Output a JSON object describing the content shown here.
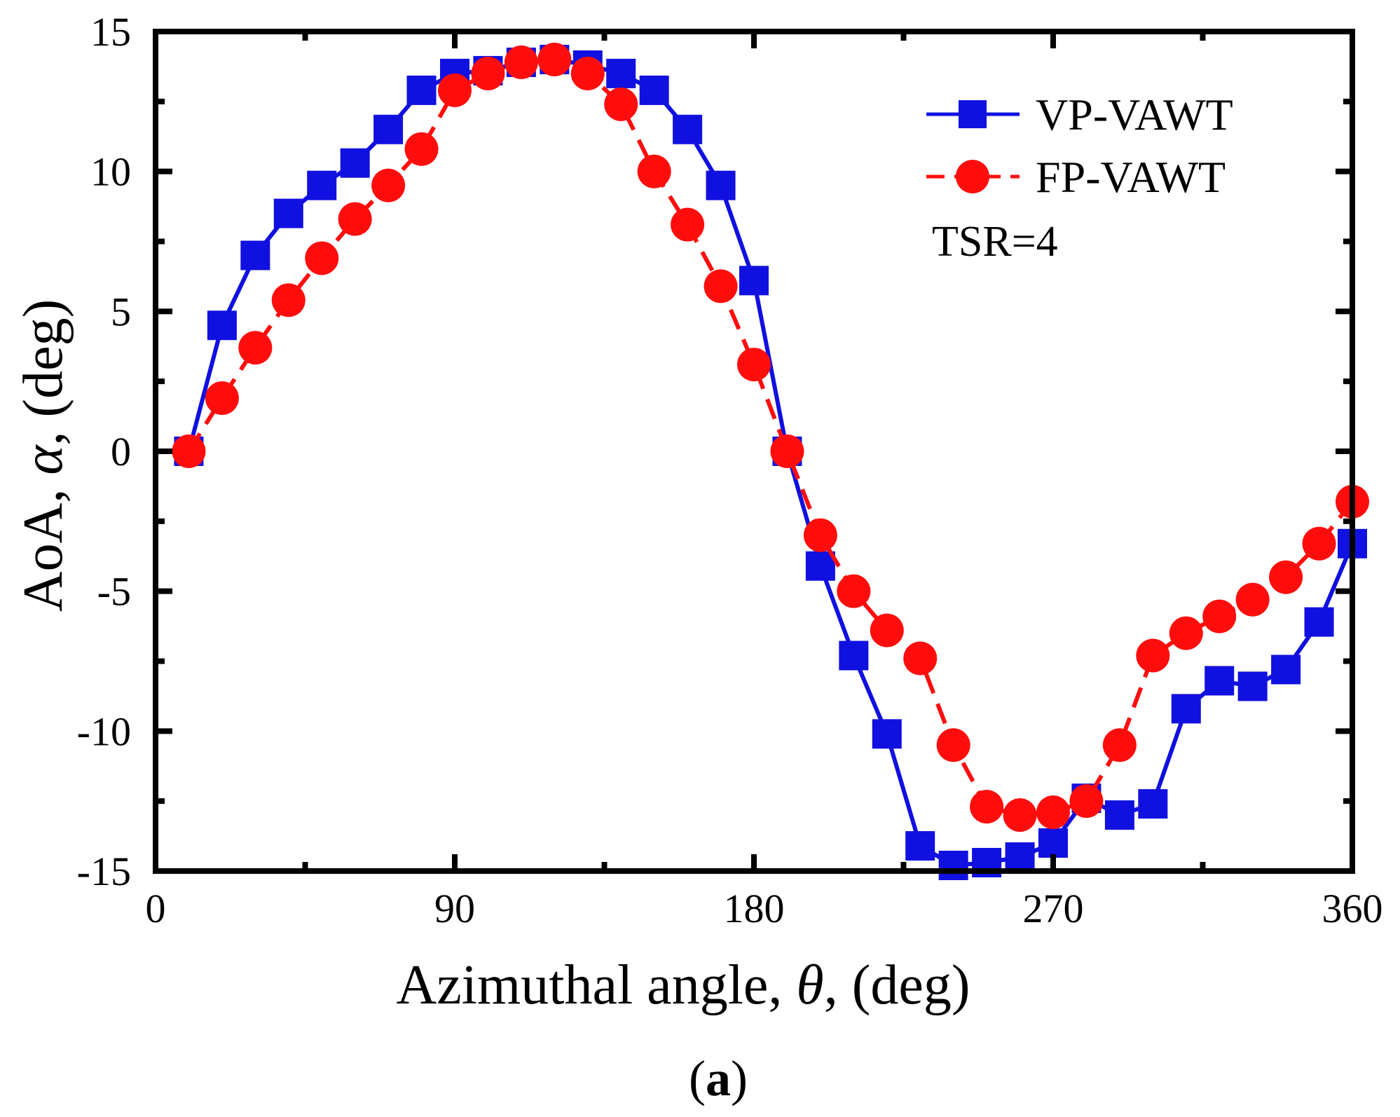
{
  "chart_data": {
    "type": "line",
    "title": "",
    "xlabel_main": "Azimuthal angle, ",
    "xlabel_symbol": "θ",
    "xlabel_unit": ", (deg)",
    "ylabel_main": "AoA, ",
    "ylabel_symbol": "α",
    "ylabel_unit": ", (deg)",
    "xlim": [
      0,
      360
    ],
    "ylim": [
      -15,
      15
    ],
    "xticks": [
      0,
      90,
      180,
      270,
      360
    ],
    "xtick_labels": [
      "0",
      "90",
      "180",
      "270",
      "360"
    ],
    "yticks": [
      -15,
      -10,
      -5,
      0,
      5,
      10,
      15
    ],
    "ytick_labels": [
      "-15",
      "-10",
      "-5",
      "0",
      "5",
      "10",
      "15"
    ],
    "grid": false,
    "legend_position": "top-right",
    "annotation": "TSR=4",
    "caption_open": "(",
    "caption_letter": "a",
    "caption_close": ")",
    "series": [
      {
        "name": "VP-VAWT",
        "color": "#1010e0",
        "marker": "square",
        "line_style": "solid",
        "x": [
          10,
          20,
          30,
          40,
          50,
          60,
          70,
          80,
          90,
          100,
          110,
          120,
          130,
          140,
          150,
          160,
          170,
          180,
          190,
          200,
          210,
          220,
          230,
          240,
          250,
          260,
          270,
          280,
          290,
          300,
          310,
          320,
          330,
          340,
          350,
          360
        ],
        "y": [
          0,
          4.5,
          7,
          8.5,
          9.5,
          10.3,
          11.5,
          12.9,
          13.5,
          13.6,
          13.9,
          14,
          13.8,
          13.5,
          12.9,
          11.5,
          9.5,
          6.1,
          0,
          -4.1,
          -7.3,
          -10.1,
          -14.1,
          -14.8,
          -14.7,
          -14.5,
          -14,
          -12.4,
          -13,
          -12.6,
          -9.2,
          -8.2,
          -8.4,
          -7.8,
          -6.1,
          -3.3
        ]
      },
      {
        "name": "FP-VAWT",
        "color": "#ff0d0d",
        "marker": "circle",
        "line_style": "dashed",
        "x": [
          10,
          20,
          30,
          40,
          50,
          60,
          70,
          80,
          90,
          100,
          110,
          120,
          130,
          140,
          150,
          160,
          170,
          180,
          190,
          200,
          210,
          220,
          230,
          240,
          250,
          260,
          270,
          280,
          290,
          300,
          310,
          320,
          330,
          340,
          350,
          360
        ],
        "y": [
          0,
          1.9,
          3.7,
          5.4,
          6.9,
          8.3,
          9.5,
          10.8,
          12.9,
          13.5,
          13.9,
          14,
          13.5,
          12.4,
          10,
          8.1,
          5.9,
          3.1,
          0,
          -3,
          -5,
          -6.4,
          -7.4,
          -10.5,
          -12.7,
          -13,
          -12.9,
          -12.5,
          -10.5,
          -7.3,
          -6.5,
          -5.9,
          -5.3,
          -4.5,
          -3.3,
          -1.8
        ]
      }
    ]
  }
}
